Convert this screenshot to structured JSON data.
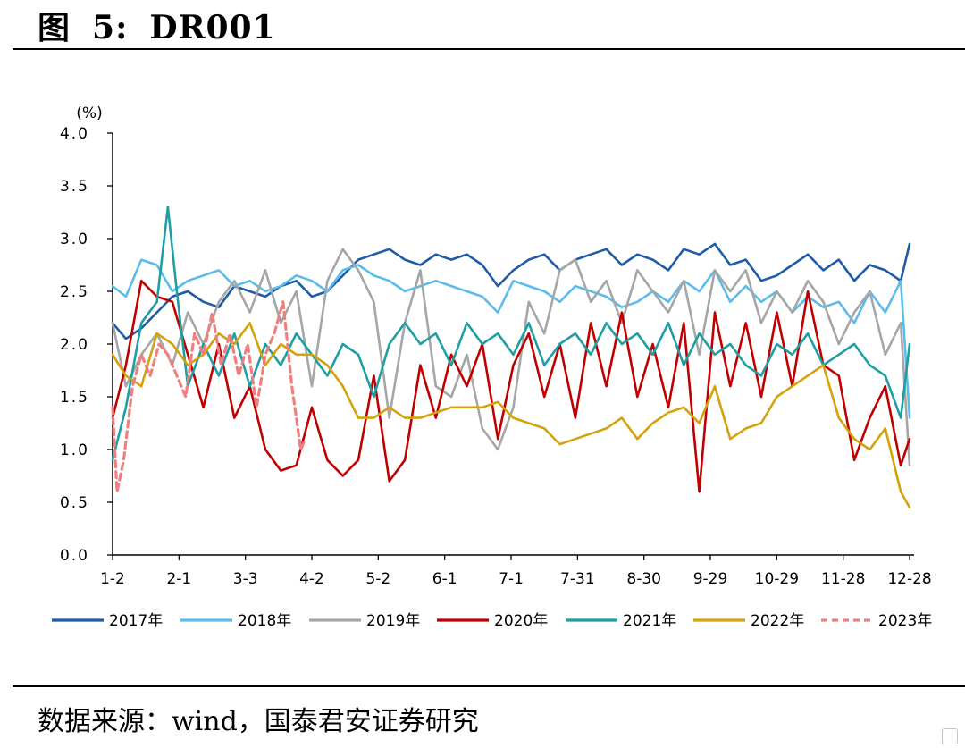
{
  "figure": {
    "label": "图",
    "number": "5:",
    "title": "DR001",
    "source": "数据来源：wind，国泰君安证券研究"
  },
  "chart_data": {
    "type": "line",
    "unit": "(%)",
    "ylim": [
      0,
      4
    ],
    "yticks": [
      "0.0",
      "0.5",
      "1.0",
      "1.5",
      "2.0",
      "2.5",
      "3.0",
      "3.5",
      "4.0"
    ],
    "xticks": [
      "1-2",
      "2-1",
      "3-3",
      "4-2",
      "5-2",
      "6-1",
      "7-1",
      "7-31",
      "8-30",
      "9-29",
      "10-29",
      "11-28",
      "12-28"
    ],
    "x_day_of_year": [
      2,
      32,
      62,
      92,
      122,
      152,
      182,
      212,
      242,
      272,
      302,
      332,
      362
    ],
    "legend_position": "bottom",
    "series": [
      {
        "name": "2017年",
        "color": "#1f5ba6",
        "dash": false,
        "x": [
          2,
          8,
          15,
          22,
          29,
          36,
          43,
          50,
          57,
          64,
          71,
          78,
          85,
          92,
          99,
          106,
          113,
          120,
          127,
          134,
          141,
          148,
          155,
          162,
          169,
          176,
          183,
          190,
          197,
          204,
          211,
          218,
          225,
          232,
          239,
          246,
          253,
          260,
          267,
          274,
          281,
          288,
          295,
          302,
          309,
          316,
          323,
          330,
          337,
          344,
          351,
          358,
          362
        ],
        "y": [
          2.2,
          2.05,
          2.15,
          2.3,
          2.45,
          2.5,
          2.4,
          2.35,
          2.55,
          2.5,
          2.45,
          2.55,
          2.6,
          2.45,
          2.5,
          2.65,
          2.8,
          2.85,
          2.9,
          2.8,
          2.75,
          2.85,
          2.8,
          2.85,
          2.75,
          2.55,
          2.7,
          2.8,
          2.85,
          2.7,
          2.8,
          2.85,
          2.9,
          2.75,
          2.85,
          2.8,
          2.7,
          2.9,
          2.85,
          2.95,
          2.75,
          2.8,
          2.6,
          2.65,
          2.75,
          2.85,
          2.7,
          2.8,
          2.6,
          2.75,
          2.7,
          2.6,
          2.95
        ]
      },
      {
        "name": "2018年",
        "color": "#5bbcea",
        "dash": false,
        "x": [
          2,
          8,
          15,
          22,
          29,
          36,
          43,
          50,
          57,
          64,
          71,
          78,
          85,
          92,
          99,
          106,
          113,
          120,
          127,
          134,
          141,
          148,
          155,
          162,
          169,
          176,
          183,
          190,
          197,
          204,
          211,
          218,
          225,
          232,
          239,
          246,
          253,
          260,
          267,
          274,
          281,
          288,
          295,
          302,
          309,
          316,
          323,
          330,
          337,
          344,
          351,
          358,
          362
        ],
        "y": [
          2.55,
          2.45,
          2.8,
          2.75,
          2.5,
          2.6,
          2.65,
          2.7,
          2.55,
          2.6,
          2.5,
          2.55,
          2.65,
          2.6,
          2.5,
          2.7,
          2.75,
          2.65,
          2.6,
          2.5,
          2.55,
          2.6,
          2.55,
          2.5,
          2.45,
          2.3,
          2.6,
          2.55,
          2.5,
          2.4,
          2.55,
          2.5,
          2.45,
          2.35,
          2.4,
          2.5,
          2.4,
          2.6,
          2.5,
          2.7,
          2.4,
          2.55,
          2.4,
          2.5,
          2.3,
          2.45,
          2.35,
          2.4,
          2.2,
          2.5,
          2.3,
          2.6,
          1.3
        ]
      },
      {
        "name": "2019年",
        "color": "#a6a6a6",
        "dash": false,
        "x": [
          2,
          8,
          15,
          22,
          29,
          36,
          43,
          50,
          57,
          64,
          71,
          78,
          85,
          92,
          99,
          106,
          113,
          120,
          127,
          134,
          141,
          148,
          155,
          162,
          169,
          176,
          183,
          190,
          197,
          204,
          211,
          218,
          225,
          232,
          239,
          246,
          253,
          260,
          267,
          274,
          281,
          288,
          295,
          302,
          309,
          316,
          323,
          330,
          337,
          344,
          351,
          358,
          362
        ],
        "y": [
          2.2,
          1.6,
          1.9,
          2.1,
          1.8,
          2.3,
          2.0,
          2.4,
          2.6,
          2.3,
          2.7,
          2.2,
          2.5,
          1.6,
          2.6,
          2.9,
          2.7,
          2.4,
          1.3,
          2.2,
          2.7,
          1.6,
          1.5,
          1.9,
          1.2,
          1.0,
          1.4,
          2.4,
          2.1,
          2.7,
          2.8,
          2.4,
          2.6,
          2.2,
          2.7,
          2.5,
          2.3,
          2.6,
          1.9,
          2.7,
          2.5,
          2.7,
          2.2,
          2.5,
          2.3,
          2.6,
          2.4,
          2.0,
          2.3,
          2.5,
          1.9,
          2.2,
          0.85
        ]
      },
      {
        "name": "2020年",
        "color": "#c00000",
        "dash": false,
        "x": [
          2,
          8,
          15,
          22,
          29,
          36,
          43,
          50,
          57,
          64,
          71,
          78,
          85,
          92,
          99,
          106,
          113,
          120,
          127,
          134,
          141,
          148,
          155,
          162,
          169,
          176,
          183,
          190,
          197,
          204,
          211,
          218,
          225,
          232,
          239,
          246,
          253,
          260,
          267,
          274,
          281,
          288,
          295,
          302,
          309,
          316,
          323,
          330,
          337,
          344,
          351,
          358,
          362
        ],
        "y": [
          1.3,
          1.8,
          2.6,
          2.45,
          2.4,
          1.9,
          1.4,
          2.0,
          1.3,
          1.6,
          1.0,
          0.8,
          0.85,
          1.4,
          0.9,
          0.75,
          0.9,
          1.7,
          0.7,
          0.9,
          1.8,
          1.3,
          1.9,
          1.6,
          2.0,
          1.1,
          1.8,
          2.1,
          1.5,
          2.0,
          1.3,
          2.2,
          1.6,
          2.3,
          1.5,
          2.0,
          1.4,
          2.2,
          0.6,
          2.3,
          1.6,
          2.2,
          1.5,
          2.3,
          1.6,
          2.5,
          1.8,
          1.7,
          0.9,
          1.3,
          1.6,
          0.85,
          1.1
        ]
      },
      {
        "name": "2021年",
        "color": "#1f9ea3",
        "dash": false,
        "x": [
          2,
          8,
          15,
          22,
          27,
          31,
          36,
          43,
          50,
          57,
          64,
          71,
          78,
          85,
          92,
          99,
          106,
          113,
          120,
          127,
          134,
          141,
          148,
          155,
          162,
          169,
          176,
          183,
          190,
          197,
          204,
          211,
          218,
          225,
          232,
          239,
          246,
          253,
          260,
          267,
          274,
          281,
          288,
          295,
          302,
          309,
          316,
          323,
          330,
          337,
          344,
          351,
          358,
          362
        ],
        "y": [
          0.9,
          1.4,
          2.2,
          2.4,
          3.3,
          2.5,
          1.6,
          2.0,
          1.7,
          2.1,
          1.6,
          2.0,
          1.8,
          2.1,
          1.9,
          1.7,
          2.0,
          1.9,
          1.5,
          2.0,
          2.2,
          2.0,
          2.1,
          1.8,
          2.2,
          2.0,
          2.1,
          1.9,
          2.2,
          1.8,
          2.0,
          2.1,
          1.9,
          2.2,
          2.0,
          2.1,
          1.9,
          2.2,
          1.8,
          2.1,
          1.9,
          2.0,
          1.8,
          1.7,
          2.0,
          1.9,
          2.1,
          1.8,
          1.9,
          2.0,
          1.8,
          1.7,
          1.3,
          2.0
        ]
      },
      {
        "name": "2022年",
        "color": "#d4a20a",
        "dash": false,
        "x": [
          2,
          8,
          15,
          22,
          29,
          36,
          43,
          50,
          57,
          64,
          71,
          78,
          85,
          92,
          99,
          106,
          113,
          120,
          127,
          134,
          141,
          148,
          155,
          162,
          169,
          176,
          183,
          190,
          197,
          204,
          211,
          218,
          225,
          232,
          239,
          246,
          253,
          260,
          267,
          274,
          281,
          288,
          295,
          302,
          309,
          316,
          323,
          330,
          337,
          344,
          351,
          358,
          362
        ],
        "y": [
          1.9,
          1.7,
          1.6,
          2.1,
          2.0,
          1.8,
          1.9,
          2.1,
          2.0,
          2.2,
          1.8,
          2.0,
          1.9,
          1.9,
          1.8,
          1.6,
          1.3,
          1.3,
          1.4,
          1.3,
          1.3,
          1.35,
          1.4,
          1.4,
          1.4,
          1.45,
          1.3,
          1.25,
          1.2,
          1.05,
          1.1,
          1.15,
          1.2,
          1.3,
          1.1,
          1.25,
          1.35,
          1.4,
          1.25,
          1.6,
          1.1,
          1.2,
          1.25,
          1.5,
          1.6,
          1.7,
          1.8,
          1.3,
          1.1,
          1.0,
          1.2,
          0.6,
          0.45
        ]
      },
      {
        "name": "2023年",
        "color": "#f08080",
        "dash": true,
        "x": [
          2,
          4,
          7,
          11,
          15,
          19,
          23,
          27,
          31,
          35,
          39,
          43,
          47,
          51,
          55,
          59,
          63,
          67,
          71,
          75,
          79,
          83,
          87,
          89
        ],
        "y": [
          1.4,
          0.6,
          0.9,
          1.6,
          1.9,
          1.7,
          2.0,
          1.9,
          1.7,
          1.5,
          2.1,
          1.9,
          2.3,
          1.8,
          2.1,
          1.7,
          2.0,
          1.4,
          1.9,
          2.1,
          2.4,
          1.6,
          1.0,
          1.1
        ]
      }
    ]
  }
}
